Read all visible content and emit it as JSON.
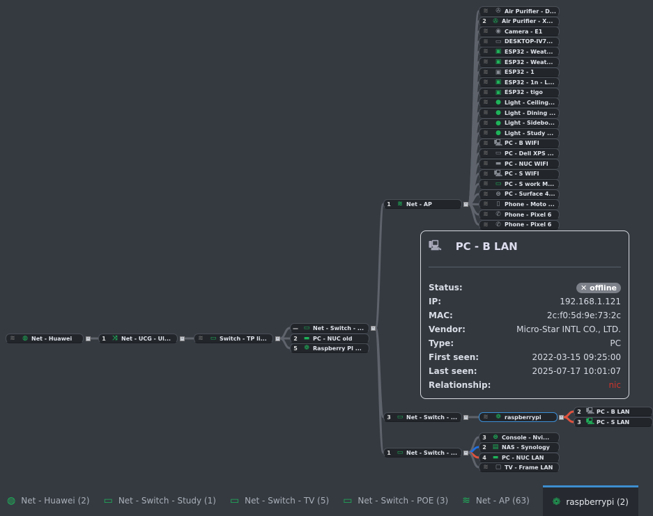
{
  "colors": {
    "online_icon": "#1fb35a",
    "offline_icon": "#8a8f97",
    "edge": "#5f646c",
    "edge_red": "#e0533e",
    "edge_blue": "#1f6fe0",
    "selected": "#3c8fd6",
    "relationship": "#d0352b"
  },
  "nodes": [
    {
      "label": "Net - Huawei",
      "badge": "",
      "wifi": true,
      "icon": "globe-icon",
      "online": true
    },
    {
      "label": "Net - UCG - Ul...",
      "badge": "1",
      "wifi": false,
      "icon": "shuffle-icon",
      "online": true
    },
    {
      "label": "Switch - TP li...",
      "badge": "",
      "wifi": true,
      "icon": "switch-icon",
      "online": true
    },
    {
      "label": "Net - Switch - ...",
      "badge": "—",
      "wifi": false,
      "icon": "switch-icon",
      "online": true
    },
    {
      "label": "PC - NUC old",
      "badge": "2",
      "wifi": false,
      "icon": "nuc-icon",
      "online": true
    },
    {
      "label": "Raspberry PI ...",
      "badge": "5",
      "wifi": false,
      "icon": "raspberry-icon",
      "online": true
    },
    {
      "label": "Net - AP",
      "badge": "1",
      "wifi": false,
      "icon": "wifi-icon",
      "online": true
    },
    {
      "label": "Net - Switch - ...",
      "badge": "3",
      "wifi": false,
      "icon": "switch-icon",
      "online": true
    },
    {
      "label": "raspberrypi",
      "badge": "",
      "wifi": true,
      "icon": "raspberry-icon",
      "online": true,
      "selected": true
    },
    {
      "label": "PC - B LAN",
      "badge": "2",
      "wifi": false,
      "icon": "desktop-icon",
      "online": false
    },
    {
      "label": "PC - S LAN",
      "badge": "3",
      "wifi": false,
      "icon": "desktop-icon",
      "online": true
    },
    {
      "label": "Net - Switch - ...",
      "badge": "1",
      "wifi": false,
      "icon": "switch-icon",
      "online": true
    },
    {
      "label": "Console - Nvi...",
      "badge": "3",
      "wifi": false,
      "icon": "gamepad-icon",
      "online": true
    },
    {
      "label": "NAS - Synology",
      "badge": "2",
      "wifi": false,
      "icon": "nas-icon",
      "online": true
    },
    {
      "label": "PC - NUC LAN",
      "badge": "4",
      "wifi": false,
      "icon": "nuc-icon",
      "online": true
    },
    {
      "label": "TV - Frame LAN",
      "badge": "",
      "wifi": true,
      "icon": "tv-icon",
      "online": false
    }
  ],
  "ap_clients": [
    {
      "label": "Air Purifier - D...",
      "badge": "",
      "icon": "fan-icon",
      "online": false
    },
    {
      "label": "Air Purifier - X...",
      "badge": "2",
      "icon": "fan-icon",
      "online": true
    },
    {
      "label": "Camera - E1",
      "badge": "",
      "icon": "camera-icon",
      "online": false
    },
    {
      "label": "DESKTOP-IV7...",
      "badge": "",
      "icon": "monitor-icon",
      "online": false
    },
    {
      "label": "ESP32 - Weat...",
      "badge": "",
      "icon": "chip-icon",
      "online": true
    },
    {
      "label": "ESP32 - Weat...",
      "badge": "",
      "icon": "chip-icon",
      "online": true
    },
    {
      "label": "ESP32 - 1",
      "badge": "",
      "icon": "chip-icon",
      "online": false
    },
    {
      "label": "ESP32 - 1n - L...",
      "badge": "",
      "icon": "chip-icon",
      "online": true
    },
    {
      "label": "ESP32 - tigo",
      "badge": "",
      "icon": "chip-icon",
      "online": true
    },
    {
      "label": "Light - Ceiling...",
      "badge": "",
      "icon": "bulb-icon",
      "online": true
    },
    {
      "label": "Light - Dining ...",
      "badge": "",
      "icon": "bulb-icon",
      "online": true
    },
    {
      "label": "Light - Sidebo...",
      "badge": "",
      "icon": "bulb-icon",
      "online": true
    },
    {
      "label": "Light - Study ...",
      "badge": "",
      "icon": "bulb-icon",
      "online": true
    },
    {
      "label": "PC - B WIFI",
      "badge": "",
      "icon": "desktop-icon",
      "online": false
    },
    {
      "label": "PC - Dell XPS ...",
      "badge": "",
      "icon": "monitor-icon",
      "online": false
    },
    {
      "label": "PC - NUC WIFI",
      "badge": "",
      "icon": "nuc-icon",
      "online": false
    },
    {
      "label": "PC - S WIFI",
      "badge": "",
      "icon": "desktop-icon",
      "online": false
    },
    {
      "label": "PC - S work M...",
      "badge": "",
      "icon": "monitor-icon",
      "online": true
    },
    {
      "label": "PC - Surface 4...",
      "badge": "",
      "icon": "gamepad-icon",
      "online": false
    },
    {
      "label": "Phone - Moto ...",
      "badge": "",
      "icon": "phone-icon",
      "online": false
    },
    {
      "label": "Phone - Pixel 6",
      "badge": "",
      "icon": "phone-handset-icon",
      "online": false
    },
    {
      "label": "Phone - Pixel 6",
      "badge": "",
      "icon": "phone-handset-icon",
      "online": false
    }
  ],
  "tooltip": {
    "title": "PC - B LAN",
    "icon": "desktop-icon",
    "rows": [
      {
        "key": "Status:",
        "value": "✕ offline"
      },
      {
        "key": "IP:",
        "value": "192.168.1.121"
      },
      {
        "key": "MAC:",
        "value": "2c:f0:5d:9e:73:2c"
      },
      {
        "key": "Vendor:",
        "value": "Micro-Star INTL CO., LTD."
      },
      {
        "key": "Type:",
        "value": "PC"
      },
      {
        "key": "First seen:",
        "value": "2022-03-15 09:25:00"
      },
      {
        "key": "Last seen:",
        "value": "2025-07-17 10:01:07"
      },
      {
        "key": "Relationship:",
        "value": "nic"
      }
    ]
  },
  "tabs": [
    {
      "label": "Net - Huawei (2)",
      "icon": "globe-icon",
      "active": false
    },
    {
      "label": "Net - Switch - Study (1)",
      "icon": "switch-icon",
      "active": false
    },
    {
      "label": "Net - Switch - TV (5)",
      "icon": "switch-icon",
      "active": false
    },
    {
      "label": "Net - Switch - POE (3)",
      "icon": "switch-icon",
      "active": false
    },
    {
      "label": "Net - AP (63)",
      "icon": "wifi-icon",
      "active": false
    },
    {
      "label": "raspberrypi (2)",
      "icon": "raspberry-icon",
      "active": true
    }
  ]
}
